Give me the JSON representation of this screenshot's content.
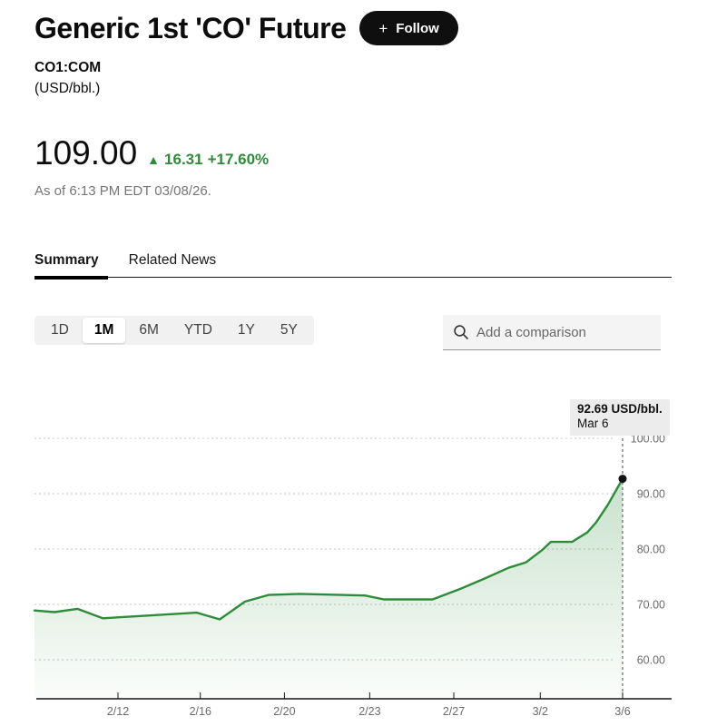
{
  "page": {
    "title": "Generic 1st 'CO' Future",
    "follow": {
      "plus_icon": "+",
      "label": "Follow"
    },
    "ticker": "CO1:COM",
    "unit": "(USD/bbl.)",
    "price": "109.00",
    "change_arrow": "▲",
    "change": "16.31",
    "change_pct": "+17.60%",
    "as_of": "As of 6:13 PM EDT 03/08/26.",
    "tabs": [
      {
        "label": "Summary",
        "active": true
      },
      {
        "label": "Related News",
        "active": false
      }
    ]
  },
  "controls": {
    "ranges": [
      {
        "label": "1D",
        "active": false
      },
      {
        "label": "1M",
        "active": true
      },
      {
        "label": "6M",
        "active": false
      },
      {
        "label": "YTD",
        "active": false
      },
      {
        "label": "1Y",
        "active": false
      },
      {
        "label": "5Y",
        "active": false
      }
    ],
    "search_placeholder": "Add a comparison"
  },
  "chart_data": {
    "type": "area",
    "title": "",
    "xlabel": "",
    "ylabel": "USD/bbl.",
    "grid": "horizontal-dashed",
    "axis_side": "right",
    "ylim": [
      57,
      104
    ],
    "colors": {
      "line": "#2e8b39",
      "fill_top": "rgba(46,139,57,0.26)",
      "fill_bottom": "rgba(46,139,57,0.02)",
      "grid": "#c4c4c4",
      "tick_label": "#6b6b6b",
      "axis": "#161616",
      "crosshair": "#4a4a4a",
      "dot": "#111111"
    },
    "y_ticks": [
      {
        "value": 100,
        "label": "100.00"
      },
      {
        "value": 90,
        "label": "90.00"
      },
      {
        "value": 80,
        "label": "80.00"
      },
      {
        "value": 70,
        "label": "70.00"
      },
      {
        "value": 60,
        "label": "60.00"
      }
    ],
    "x_ticks": [
      {
        "label": "2/12",
        "x": 0.142
      },
      {
        "label": "2/16",
        "x": 0.282
      },
      {
        "label": "2/20",
        "x": 0.425
      },
      {
        "label": "2/23",
        "x": 0.57
      },
      {
        "label": "2/27",
        "x": 0.713
      },
      {
        "label": "3/2",
        "x": 0.86
      },
      {
        "label": "3/6",
        "x": 1.0
      }
    ],
    "series": [
      {
        "name": "CO1:COM",
        "unit": "USD/bbl.",
        "points": [
          [
            0.0,
            68.9
          ],
          [
            0.034,
            68.6
          ],
          [
            0.073,
            69.2
          ],
          [
            0.116,
            67.5
          ],
          [
            0.196,
            68.0
          ],
          [
            0.276,
            68.5
          ],
          [
            0.315,
            67.3
          ],
          [
            0.358,
            70.5
          ],
          [
            0.398,
            71.7
          ],
          [
            0.451,
            71.9
          ],
          [
            0.562,
            71.6
          ],
          [
            0.594,
            70.9
          ],
          [
            0.677,
            70.9
          ],
          [
            0.724,
            72.8
          ],
          [
            0.764,
            74.6
          ],
          [
            0.806,
            76.6
          ],
          [
            0.836,
            77.6
          ],
          [
            0.863,
            79.8
          ],
          [
            0.878,
            81.3
          ],
          [
            0.914,
            81.3
          ],
          [
            0.94,
            83.0
          ],
          [
            0.955,
            84.8
          ],
          [
            0.975,
            88.0
          ],
          [
            1.0,
            92.69
          ]
        ]
      }
    ],
    "last_point": {
      "value": 92.69,
      "tooltip_line1": "92.69 USD/bbl.",
      "tooltip_line2": "Mar 6"
    }
  }
}
